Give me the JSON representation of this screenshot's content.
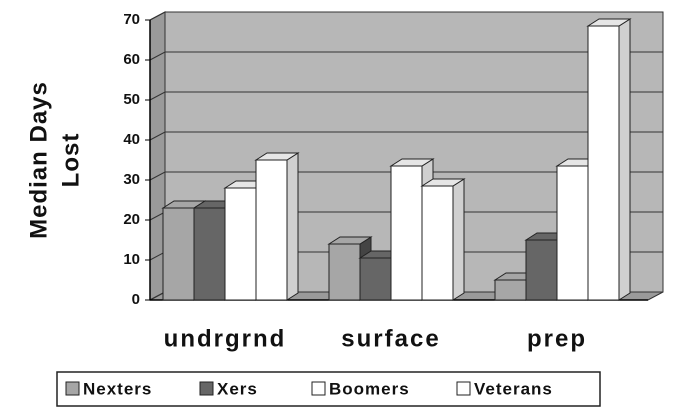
{
  "chart_data": {
    "type": "bar3d",
    "y_label": [
      "Median Days",
      "Lost"
    ],
    "categories": [
      "undrgrnd",
      "surface",
      "prep"
    ],
    "series": [
      {
        "name": "Nexters",
        "color": "#a6a6a6",
        "values": [
          23,
          14,
          5
        ]
      },
      {
        "name": "Xers",
        "color": "#666666",
        "values": [
          23,
          10.5,
          15
        ]
      },
      {
        "name": "Boomers",
        "color": "#ffffff",
        "values": [
          28,
          33.5,
          33.5
        ]
      },
      {
        "name": "Veterans",
        "color": "#ffffff",
        "values": [
          35,
          28.5,
          68.5
        ]
      }
    ],
    "ylim": [
      0,
      70
    ],
    "yticks": [
      0,
      10,
      20,
      30,
      40,
      50,
      60,
      70
    ],
    "grid": true,
    "legend": "bottom"
  }
}
